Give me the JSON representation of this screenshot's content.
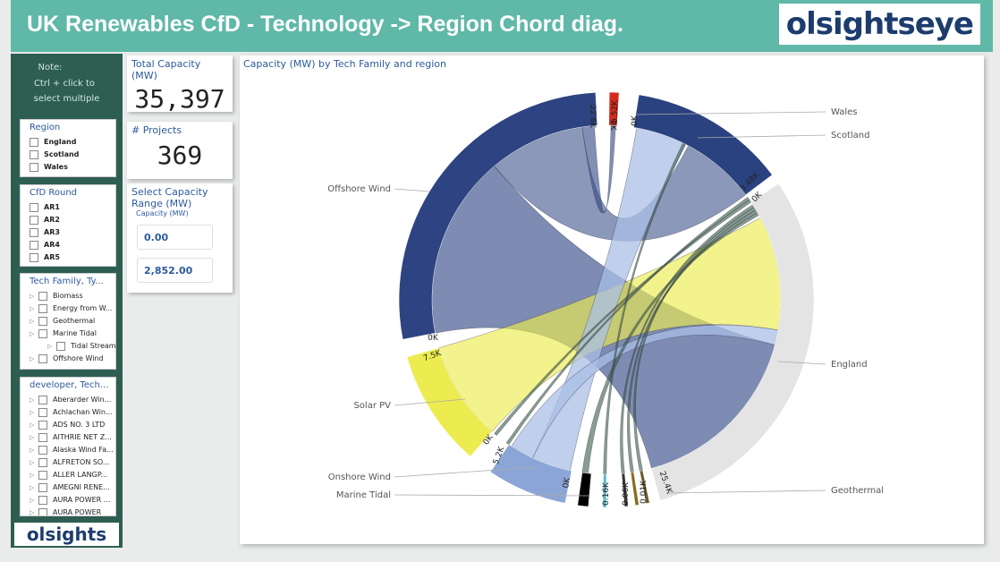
{
  "header": {
    "title": "UK Renewables CfD - Technology -> Region Chord diag.",
    "logo": "olsightseye"
  },
  "sidebar": {
    "note_title": "Note:",
    "note": [
      "Ctrl + click to",
      "select multiple"
    ],
    "slicers": [
      {
        "title": "Region",
        "items": [
          "England",
          "Scotland",
          "Wales"
        ]
      },
      {
        "title": "CfD Round",
        "items": [
          "AR1",
          "AR2",
          "AR3",
          "AR4",
          "AR5"
        ]
      },
      {
        "title": "Tech Family, Ty...",
        "items": [
          "Biomass",
          "Energy from W...",
          "Geothermal",
          "Marine Tidal",
          "Tidal Stream",
          "Offshore Wind"
        ]
      },
      {
        "title": "developer, Tech...",
        "items": [
          "Aberarder Win...",
          "Achlachan Win...",
          "ADS NO. 3 LTD",
          "AITHRIE NET Z...",
          "Alaska Wind Fa...",
          "ALFRETON SO...",
          "ALLER LANGP...",
          "AMEGNI RENE...",
          "AURA POWER ...",
          "AURA POWER"
        ]
      }
    ],
    "logo": "olsights"
  },
  "cards": [
    {
      "label": "Total Capacity (MW)",
      "value": "35,397"
    },
    {
      "label": "# Projects",
      "value": "369"
    }
  ],
  "range": {
    "label": "Select Capacity Range (MW)",
    "sublabel": "Capacity (MW)",
    "min": "0.00",
    "max": "2,852.00"
  },
  "chord": {
    "title": "Capacity (MW) by Tech Family and region",
    "labels": [
      "Wales",
      "Scotland",
      "Offshore Wind",
      "England",
      "Solar PV",
      "Onshore Wind",
      "Marine Tidal",
      "Geothermal"
    ],
    "tick_labels": [
      "22.6K",
      "0K",
      "0.52K",
      "0K",
      "3.48K",
      "0K",
      "0K",
      "7.5K",
      "0K",
      "5.2K",
      "0K",
      "25.4K",
      "0.16K",
      "0.06K",
      "0.01K"
    ]
  }
}
